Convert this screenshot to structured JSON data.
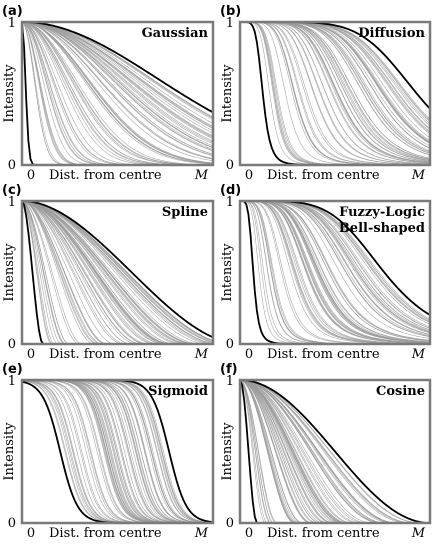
{
  "chart_data": [
    {
      "panel": "(a)",
      "title": "Gaussian",
      "type": "line",
      "family": "gaussian",
      "xlabel": "Dist. from centre",
      "ylabel": "Intensity",
      "x_ticks": [
        "0",
        "M"
      ],
      "y_ticks": [
        "0",
        "1"
      ],
      "xlim": [
        0,
        1
      ],
      "ylim": [
        0,
        1
      ],
      "envelope_bold": [
        {
          "name": "",
          "param": 0.025
        },
        {
          "name": "",
          "param": 1.0
        }
      ],
      "grey_curve_count": 70
    },
    {
      "panel": "(b)",
      "title": "Diffusion",
      "type": "line",
      "family": "diffusion",
      "xlabel": "Dist. from centre",
      "ylabel": "Intensity",
      "x_ticks": [
        "0",
        "M"
      ],
      "y_ticks": [
        "0",
        "1"
      ],
      "xlim": [
        0,
        1
      ],
      "ylim": [
        0,
        1
      ],
      "envelope_bold": [
        {
          "name": "",
          "param": 0.12
        },
        {
          "name": "",
          "param": 0.93
        }
      ],
      "grey_curve_count": 70
    },
    {
      "panel": "(c)",
      "title": "Spline",
      "type": "line",
      "family": "spline",
      "xlabel": "Dist. from centre",
      "ylabel": "Intensity",
      "x_ticks": [
        "0",
        "M"
      ],
      "y_ticks": [
        "0",
        "1"
      ],
      "xlim": [
        0,
        1
      ],
      "ylim": [
        0,
        1
      ],
      "envelope_bold": [
        {
          "name": "",
          "param": 0.11
        },
        {
          "name": "",
          "param": 1.15
        }
      ],
      "grey_curve_count": 70
    },
    {
      "panel": "(d)",
      "title": "Fuzzy-Logic Bell-shaped",
      "title_lines": [
        "Fuzzy-Logic",
        "Bell-shaped"
      ],
      "type": "line",
      "family": "bell",
      "xlabel": "Dist. from centre",
      "ylabel": "Intensity",
      "x_ticks": [
        "0",
        "M"
      ],
      "y_ticks": [
        "0",
        "1"
      ],
      "xlim": [
        0,
        1
      ],
      "ylim": [
        0,
        1
      ],
      "envelope_bold": [
        {
          "name": "",
          "param": 0.07
        },
        {
          "name": "",
          "param": 0.76
        }
      ],
      "grey_curve_count": 70
    },
    {
      "panel": "(e)",
      "title": "Sigmoid",
      "type": "line",
      "family": "sigmoid",
      "xlabel": "Dist. from centre",
      "ylabel": "Intensity",
      "x_ticks": [
        "0",
        "M"
      ],
      "y_ticks": [
        "0",
        "1"
      ],
      "xlim": [
        0,
        1
      ],
      "ylim": [
        0,
        1
      ],
      "envelope_bold": [
        {
          "name": "",
          "param": 0.2
        },
        {
          "name": "",
          "param": 0.77
        }
      ],
      "grey_curve_count": 70
    },
    {
      "panel": "(f)",
      "title": "Cosine",
      "type": "line",
      "family": "cosine",
      "xlabel": "Dist. from centre",
      "ylabel": "Intensity",
      "x_ticks": [
        "0",
        "M"
      ],
      "y_ticks": [
        "0",
        "1"
      ],
      "xlim": [
        0,
        1
      ],
      "ylim": [
        0,
        1
      ],
      "envelope_bold": [
        {
          "name": "",
          "param": 0.09
        },
        {
          "name": "",
          "param": 1.0
        }
      ],
      "grey_curve_count": 70
    }
  ]
}
